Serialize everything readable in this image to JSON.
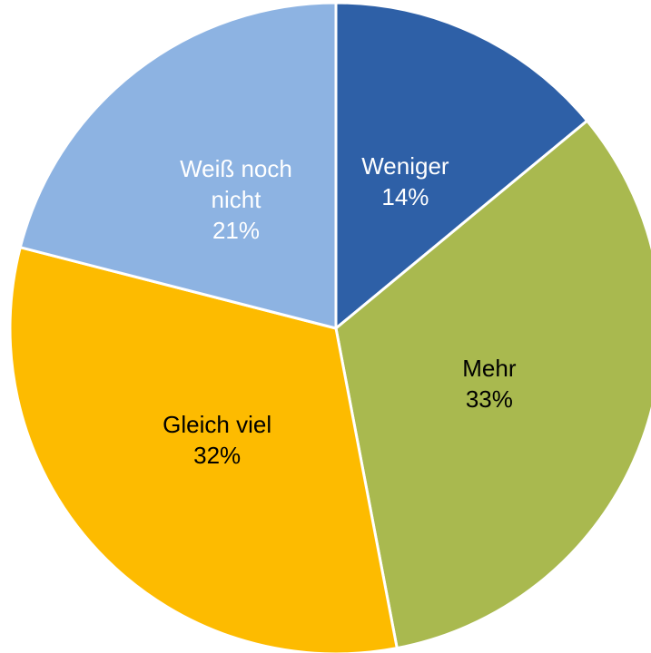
{
  "chart_data": {
    "type": "pie",
    "categories": [
      "Weniger",
      "Mehr",
      "Gleich viel",
      "Weiß noch nicht"
    ],
    "values": [
      14,
      33,
      32,
      21
    ],
    "value_labels": [
      "14%",
      "33%",
      "32%",
      "21%"
    ],
    "colors": [
      "#2e60a7",
      "#a9b94f",
      "#fdbb00",
      "#8db3e2"
    ]
  }
}
